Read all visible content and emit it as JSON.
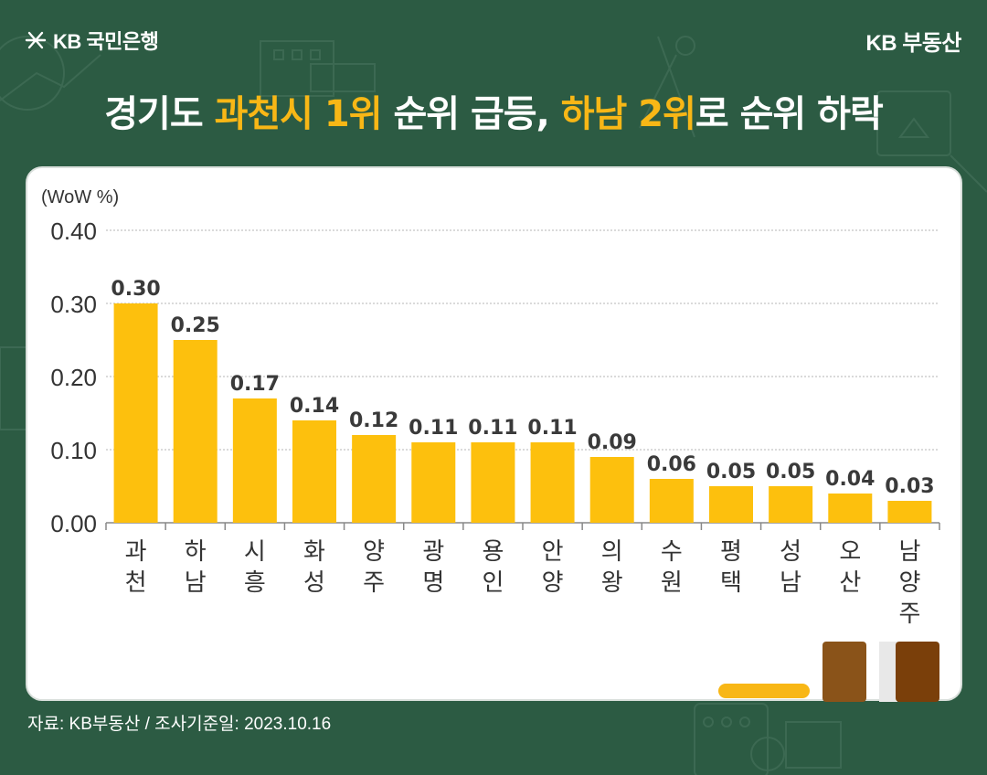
{
  "header": {
    "bank_logo_text": "KB 국민은행",
    "brand_right": "KB 부동산"
  },
  "title": {
    "part1": "경기도 ",
    "highlight1": "과천시 1위",
    "part2": " 순위 급등, ",
    "highlight2": "하남 2위",
    "part3": "로 순위 하락"
  },
  "source": "자료: KB부동산 / 조사기준일: 2023.10.16",
  "colors": {
    "background": "#2c5b43",
    "bar": "#fdc00d",
    "highlight": "#f8b716",
    "label": "#3a3a3a"
  },
  "chart_data": {
    "type": "bar",
    "unit_label": "(WoW %)",
    "categories": [
      "과천",
      "하남",
      "시흥",
      "화성",
      "양주",
      "광명",
      "용인",
      "안양",
      "의왕",
      "수원",
      "평택",
      "성남",
      "오산",
      "남양주"
    ],
    "values": [
      0.3,
      0.25,
      0.17,
      0.14,
      0.12,
      0.11,
      0.11,
      0.11,
      0.09,
      0.06,
      0.05,
      0.05,
      0.04,
      0.03
    ],
    "value_labels": [
      "0.30",
      "0.25",
      "0.17",
      "0.14",
      "0.12",
      "0.11",
      "0.11",
      "0.11",
      "0.09",
      "0.06",
      "0.05",
      "0.05",
      "0.04",
      "0.03"
    ],
    "yticks": [
      "0.00",
      "0.10",
      "0.20",
      "0.30",
      "0.40"
    ],
    "ylim": [
      0,
      0.4
    ],
    "grid": true
  }
}
